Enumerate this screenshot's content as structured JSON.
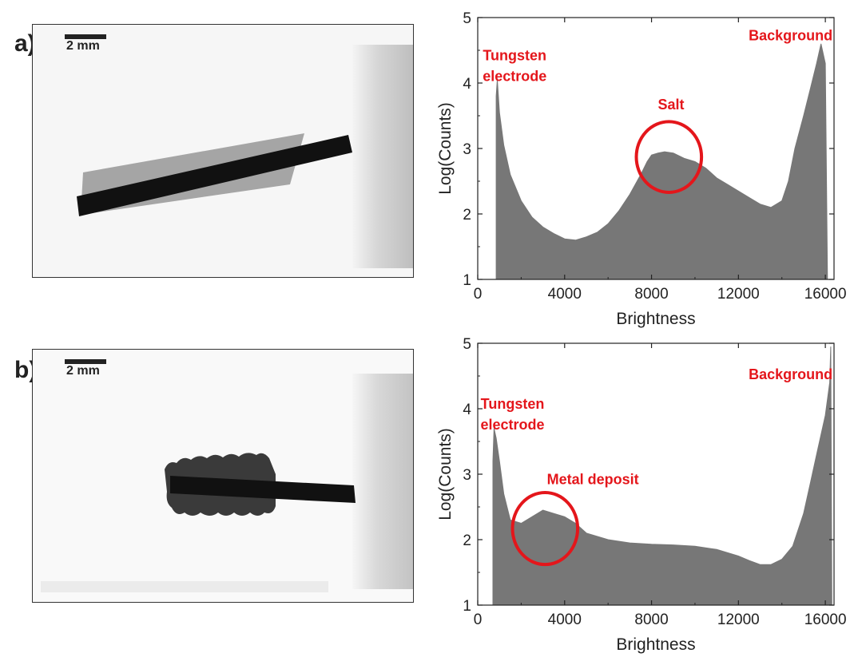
{
  "panels": [
    {
      "label": "a)",
      "scale_bar": "2 mm"
    },
    {
      "label": "b)",
      "scale_bar": "2 mm"
    }
  ],
  "colors": {
    "histogram": "#777777",
    "annotation": "#e4161b",
    "axis": "#222222",
    "rod": "#111111",
    "salt": "#8a8a8a"
  },
  "chart_data": [
    {
      "type": "area",
      "xlabel": "Brightness",
      "ylabel": "Log(Counts)",
      "xlim": [
        0,
        16400
      ],
      "ylim": [
        1,
        5
      ],
      "xticks": [
        "0",
        "4000",
        "8000",
        "12000",
        "16000"
      ],
      "xtick_values": [
        0,
        4000,
        8000,
        12000,
        16000
      ],
      "yticks": [
        "1",
        "2",
        "3",
        "4",
        "5"
      ],
      "ytick_values": [
        1,
        2,
        3,
        4,
        5
      ],
      "series": [
        {
          "x": [
            850,
            900,
            1000,
            1200,
            1500,
            2000,
            2500,
            3000,
            3500,
            4000,
            4500,
            5000,
            5500,
            6000,
            6500,
            7000,
            7500,
            7800,
            8000,
            8300,
            8600,
            9000,
            9500,
            10000,
            10500,
            11000,
            11500,
            12000,
            12500,
            13000,
            13500,
            14000,
            14300,
            14600,
            15000,
            15300,
            15600,
            15800,
            16000,
            16100
          ],
          "y": [
            3.8,
            4.05,
            3.55,
            3.05,
            2.6,
            2.2,
            1.95,
            1.8,
            1.7,
            1.62,
            1.6,
            1.65,
            1.72,
            1.85,
            2.05,
            2.3,
            2.6,
            2.8,
            2.9,
            2.93,
            2.95,
            2.93,
            2.85,
            2.8,
            2.7,
            2.55,
            2.45,
            2.35,
            2.25,
            2.15,
            2.1,
            2.2,
            2.5,
            3.0,
            3.5,
            3.9,
            4.3,
            4.6,
            4.3,
            1.0
          ]
        }
      ],
      "annotations": [
        {
          "text": "Tungsten",
          "x": 1700,
          "y": 4.35
        },
        {
          "text": "electrode",
          "x": 1700,
          "y": 4.03
        },
        {
          "text": "Salt",
          "x": 8900,
          "y": 3.6
        },
        {
          "text": "Background",
          "x": 14400,
          "y": 4.65
        }
      ],
      "highlight_circle": {
        "cx": 8800,
        "cy": 2.87,
        "rx": 1500,
        "ry": 0.54
      }
    },
    {
      "type": "area",
      "xlabel": "Brightness",
      "ylabel": "Log(Counts)",
      "xlim": [
        0,
        16400
      ],
      "ylim": [
        1,
        5
      ],
      "xticks": [
        "0",
        "4000",
        "8000",
        "12000",
        "16000"
      ],
      "xtick_values": [
        0,
        4000,
        8000,
        12000,
        16000
      ],
      "yticks": [
        "1",
        "2",
        "3",
        "4",
        "5"
      ],
      "ytick_values": [
        1,
        2,
        3,
        4,
        5
      ],
      "series": [
        {
          "x": [
            700,
            750,
            850,
            1000,
            1200,
            1500,
            2000,
            2500,
            3000,
            3500,
            4000,
            4500,
            5000,
            6000,
            7000,
            8000,
            9000,
            10000,
            11000,
            12000,
            12500,
            13000,
            13500,
            14000,
            14500,
            15000,
            15300,
            15600,
            16000,
            16200,
            16250,
            16300
          ],
          "y": [
            3.2,
            3.7,
            3.55,
            3.2,
            2.7,
            2.3,
            2.25,
            2.35,
            2.45,
            2.4,
            2.35,
            2.25,
            2.1,
            2.0,
            1.95,
            1.93,
            1.92,
            1.9,
            1.85,
            1.75,
            1.68,
            1.62,
            1.62,
            1.7,
            1.9,
            2.4,
            2.85,
            3.3,
            3.9,
            4.4,
            4.95,
            1.0
          ]
        }
      ],
      "annotations": [
        {
          "text": "Tungsten",
          "x": 1600,
          "y": 4.0
        },
        {
          "text": "electrode",
          "x": 1600,
          "y": 3.68
        },
        {
          "text": "Metal deposit",
          "x": 5300,
          "y": 2.85
        },
        {
          "text": "Background",
          "x": 14400,
          "y": 4.45
        }
      ],
      "highlight_circle": {
        "cx": 3100,
        "cy": 2.17,
        "rx": 1500,
        "ry": 0.55
      }
    }
  ]
}
